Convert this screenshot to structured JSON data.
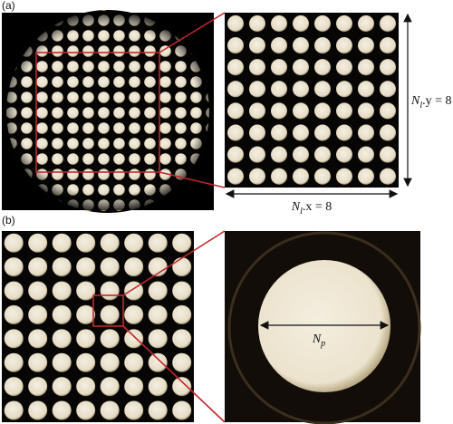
{
  "panel_a": {
    "label": "(a)",
    "y_annotation": {
      "main": "N",
      "sub": "l",
      "rest": ".y = 8"
    },
    "x_annotation": {
      "main": "N",
      "sub": "l",
      "rest": ".x = 8"
    }
  },
  "panel_b": {
    "label": "(b)",
    "diameter_annotation": {
      "main": "N",
      "sub": "p"
    }
  }
}
